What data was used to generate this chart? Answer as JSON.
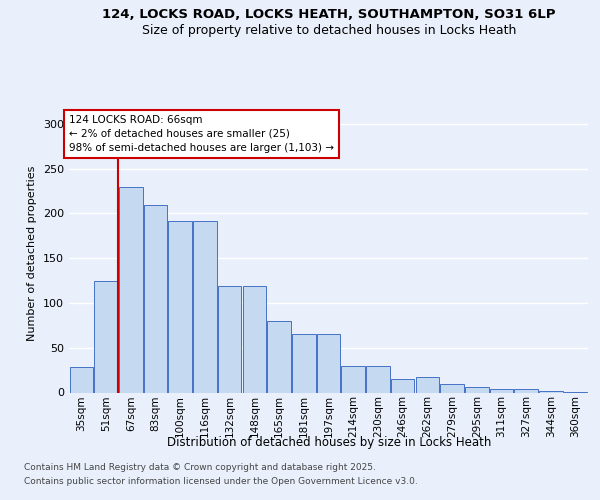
{
  "title_line1": "124, LOCKS ROAD, LOCKS HEATH, SOUTHAMPTON, SO31 6LP",
  "title_line2": "Size of property relative to detached houses in Locks Heath",
  "xlabel": "Distribution of detached houses by size in Locks Heath",
  "ylabel": "Number of detached properties",
  "categories": [
    "35sqm",
    "51sqm",
    "67sqm",
    "83sqm",
    "100sqm",
    "116sqm",
    "132sqm",
    "148sqm",
    "165sqm",
    "181sqm",
    "197sqm",
    "214sqm",
    "230sqm",
    "246sqm",
    "262sqm",
    "279sqm",
    "295sqm",
    "311sqm",
    "327sqm",
    "344sqm",
    "360sqm"
  ],
  "bar_values": [
    28,
    125,
    230,
    210,
    192,
    192,
    119,
    119,
    80,
    65,
    65,
    30,
    30,
    15,
    17,
    10,
    6,
    4,
    4,
    2,
    1
  ],
  "bar_color": "#c5d9f0",
  "bar_edge_color": "#4472c4",
  "vline_x": 1.5,
  "vline_color": "#cc0000",
  "annotation_line1": "124 LOCKS ROAD: 66sqm",
  "annotation_line2": "← 2% of detached houses are smaller (25)",
  "annotation_line3": "98% of semi-detached houses are larger (1,103) →",
  "ylim": [
    0,
    310
  ],
  "yticks": [
    0,
    50,
    100,
    150,
    200,
    250,
    300
  ],
  "background_color": "#eaf0fb",
  "footer_line1": "Contains HM Land Registry data © Crown copyright and database right 2025.",
  "footer_line2": "Contains public sector information licensed under the Open Government Licence v3.0."
}
